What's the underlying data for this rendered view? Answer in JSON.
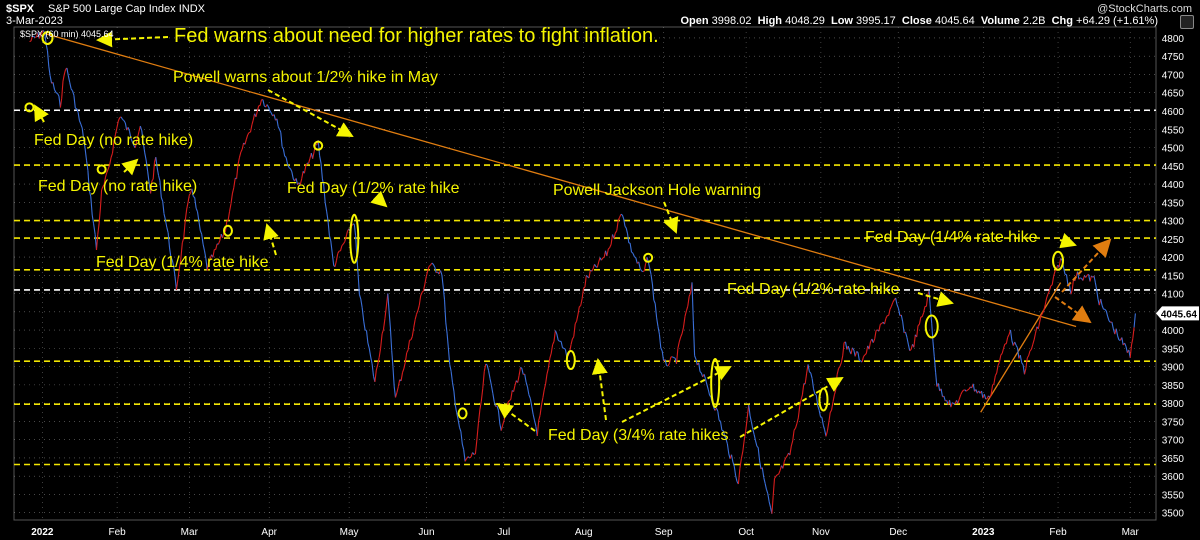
{
  "header": {
    "symbol": "$SPX",
    "name": "S&P 500 Large Cap Index",
    "exchange": "INDX",
    "date": "3-Mar-2023",
    "source": "@StockCharts.com",
    "open_label": "Open",
    "open": "3998.02",
    "high_label": "High",
    "high": "4048.29",
    "low_label": "Low",
    "low": "3995.17",
    "close_label": "Close",
    "close": "4045.64",
    "volume_label": "Volume",
    "volume": "2.2B",
    "chg_label": "Chg",
    "chg": "+64.29 (+1.61%)"
  },
  "colors": {
    "background": "#000000",
    "price_up": "#d81d1d",
    "price_down": "#3a6fd8",
    "support_lines": "#f2e600",
    "grid": "#ffffff",
    "trendline": "#e07d10",
    "annotation_text": "#f5f500",
    "last_price_tag": "#ffffff"
  },
  "chart_data": {
    "type": "line",
    "legend": "$SPX (60 min) 4045.64",
    "legend_placement": "top-left",
    "grid": true,
    "ylim": [
      3480,
      4830
    ],
    "y_ticks": [
      3500,
      3550,
      3600,
      3650,
      3700,
      3750,
      3800,
      3850,
      3900,
      3950,
      4000,
      4050,
      4100,
      4150,
      4200,
      4250,
      4300,
      4350,
      4400,
      4450,
      4500,
      4550,
      4600,
      4650,
      4700,
      4750,
      4800
    ],
    "x_ticks": [
      "2022",
      "Feb",
      "Mar",
      "Apr",
      "May",
      "Jun",
      "Jul",
      "Aug",
      "Sep",
      "Oct",
      "Nov",
      "Dec",
      "2023",
      "Feb",
      "Mar"
    ],
    "last_price": "4045.64",
    "support_resistance_levels": [
      4602,
      4452,
      4300,
      4252,
      4165,
      4110,
      3915,
      3797,
      3632
    ],
    "series": [
      {
        "values": [
          {
            "x": "2021-12-29",
            "y": 4790
          },
          {
            "x": "2022-01-04",
            "y": 4818
          },
          {
            "x": "2022-01-06",
            "y": 4690
          },
          {
            "x": "2022-01-10",
            "y": 4620
          },
          {
            "x": "2022-01-12",
            "y": 4725
          },
          {
            "x": "2022-01-19",
            "y": 4530
          },
          {
            "x": "2022-01-24",
            "y": 4222
          },
          {
            "x": "2022-01-26",
            "y": 4375
          },
          {
            "x": "2022-01-28",
            "y": 4420
          },
          {
            "x": "2022-02-02",
            "y": 4590
          },
          {
            "x": "2022-02-08",
            "y": 4510
          },
          {
            "x": "2022-02-10",
            "y": 4560
          },
          {
            "x": "2022-02-14",
            "y": 4380
          },
          {
            "x": "2022-02-16",
            "y": 4470
          },
          {
            "x": "2022-02-24",
            "y": 4115
          },
          {
            "x": "2022-02-28",
            "y": 4320
          },
          {
            "x": "2022-03-02",
            "y": 4395
          },
          {
            "x": "2022-03-08",
            "y": 4170
          },
          {
            "x": "2022-03-15",
            "y": 4275
          },
          {
            "x": "2022-03-21",
            "y": 4480
          },
          {
            "x": "2022-03-29",
            "y": 4635
          },
          {
            "x": "2022-04-04",
            "y": 4582
          },
          {
            "x": "2022-04-07",
            "y": 4480
          },
          {
            "x": "2022-04-12",
            "y": 4395
          },
          {
            "x": "2022-04-20",
            "y": 4512
          },
          {
            "x": "2022-04-26",
            "y": 4175
          },
          {
            "x": "2022-05-04",
            "y": 4300
          },
          {
            "x": "2022-05-06",
            "y": 4095
          },
          {
            "x": "2022-05-12",
            "y": 3858
          },
          {
            "x": "2022-05-17",
            "y": 4090
          },
          {
            "x": "2022-05-20",
            "y": 3810
          },
          {
            "x": "2022-06-02",
            "y": 4177
          },
          {
            "x": "2022-06-07",
            "y": 4160
          },
          {
            "x": "2022-06-10",
            "y": 3900
          },
          {
            "x": "2022-06-16",
            "y": 3640
          },
          {
            "x": "2022-06-20",
            "y": 3665
          },
          {
            "x": "2022-06-24",
            "y": 3910
          },
          {
            "x": "2022-06-30",
            "y": 3737
          },
          {
            "x": "2022-07-08",
            "y": 3900
          },
          {
            "x": "2022-07-14",
            "y": 3721
          },
          {
            "x": "2022-07-21",
            "y": 3998
          },
          {
            "x": "2022-07-26",
            "y": 3925
          },
          {
            "x": "2022-08-02",
            "y": 4140
          },
          {
            "x": "2022-08-10",
            "y": 4210
          },
          {
            "x": "2022-08-16",
            "y": 4325
          },
          {
            "x": "2022-08-19",
            "y": 4230
          },
          {
            "x": "2022-08-24",
            "y": 4150
          },
          {
            "x": "2022-08-26",
            "y": 4200
          },
          {
            "x": "2022-09-01",
            "y": 3906
          },
          {
            "x": "2022-09-06",
            "y": 3920
          },
          {
            "x": "2022-09-12",
            "y": 4119
          },
          {
            "x": "2022-09-13",
            "y": 3935
          },
          {
            "x": "2022-09-22",
            "y": 3770
          },
          {
            "x": "2022-09-30",
            "y": 3585
          },
          {
            "x": "2022-10-04",
            "y": 3790
          },
          {
            "x": "2022-10-13",
            "y": 3491
          },
          {
            "x": "2022-10-14",
            "y": 3585
          },
          {
            "x": "2022-10-20",
            "y": 3660
          },
          {
            "x": "2022-10-27",
            "y": 3900
          },
          {
            "x": "2022-11-03",
            "y": 3715
          },
          {
            "x": "2022-11-10",
            "y": 3960
          },
          {
            "x": "2022-11-17",
            "y": 3920
          },
          {
            "x": "2022-11-30",
            "y": 4080
          },
          {
            "x": "2022-12-06",
            "y": 3940
          },
          {
            "x": "2022-12-13",
            "y": 4100
          },
          {
            "x": "2022-12-16",
            "y": 3850
          },
          {
            "x": "2022-12-22",
            "y": 3790
          },
          {
            "x": "2022-12-29",
            "y": 3850
          },
          {
            "x": "2023-01-05",
            "y": 3810
          },
          {
            "x": "2023-01-13",
            "y": 3999
          },
          {
            "x": "2023-01-19",
            "y": 3890
          },
          {
            "x": "2023-01-27",
            "y": 4070
          },
          {
            "x": "2023-02-02",
            "y": 4195
          },
          {
            "x": "2023-02-06",
            "y": 4110
          },
          {
            "x": "2023-02-08",
            "y": 4150
          },
          {
            "x": "2023-02-15",
            "y": 4140
          },
          {
            "x": "2023-02-17",
            "y": 4080
          },
          {
            "x": "2023-02-23",
            "y": 4000
          },
          {
            "x": "2023-03-01",
            "y": 3930
          },
          {
            "x": "2023-03-03",
            "y": 4045.64
          }
        ]
      }
    ],
    "annotations": [
      "Fed warns about need for higher rates to fight inflation.",
      "Powell warns about 1/2% hike in May",
      "Fed Day (no rate hike)",
      "Fed Day (no rate hike)",
      "Fed Day (1/4% rate hike",
      "Fed Day (1/2% rate hike",
      "Powell Jackson Hole warning",
      "Fed Day (1/4% rate hike",
      "Fed Day (1/2% rate hike",
      "Fed Day (3/4% rate hikes"
    ]
  }
}
